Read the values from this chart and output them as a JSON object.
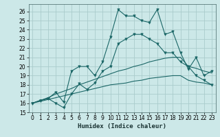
{
  "title": "",
  "xlabel": "Humidex (Indice chaleur)",
  "xlim": [
    -0.5,
    23.5
  ],
  "ylim": [
    15,
    26.8
  ],
  "yticks": [
    15,
    16,
    17,
    18,
    19,
    20,
    21,
    22,
    23,
    24,
    25,
    26
  ],
  "xticks": [
    0,
    1,
    2,
    3,
    4,
    5,
    6,
    7,
    8,
    9,
    10,
    11,
    12,
    13,
    14,
    15,
    16,
    17,
    18,
    19,
    20,
    21,
    22,
    23
  ],
  "bg_color": "#cce8e8",
  "grid_color": "#aacccc",
  "line_color": "#1a6666",
  "series1_spiky": [
    16.0,
    16.3,
    16.5,
    17.2,
    16.1,
    19.5,
    20.0,
    20.0,
    19.0,
    20.5,
    23.2,
    26.2,
    25.5,
    25.5,
    25.0,
    24.8,
    26.2,
    23.5,
    23.8,
    21.5,
    19.7,
    21.0,
    19.0,
    19.5
  ],
  "series2_spiky": [
    16.0,
    16.3,
    16.5,
    16.0,
    15.5,
    17.0,
    18.1,
    17.5,
    18.2,
    19.5,
    20.0,
    22.5,
    23.0,
    23.5,
    23.5,
    23.0,
    22.5,
    21.5,
    21.5,
    20.5,
    20.0,
    19.0,
    18.5,
    18.0
  ],
  "series3_smooth": [
    16.0,
    16.3,
    16.6,
    17.0,
    17.3,
    17.6,
    18.0,
    18.3,
    18.6,
    18.9,
    19.2,
    19.5,
    19.7,
    20.0,
    20.2,
    20.5,
    20.7,
    20.9,
    21.0,
    21.0,
    20.0,
    19.8,
    19.5,
    19.3
  ],
  "series4_smooth": [
    16.0,
    16.2,
    16.4,
    16.6,
    16.8,
    17.0,
    17.2,
    17.4,
    17.6,
    17.8,
    18.0,
    18.1,
    18.2,
    18.4,
    18.5,
    18.7,
    18.8,
    18.9,
    19.0,
    19.0,
    18.5,
    18.3,
    18.2,
    18.0
  ]
}
